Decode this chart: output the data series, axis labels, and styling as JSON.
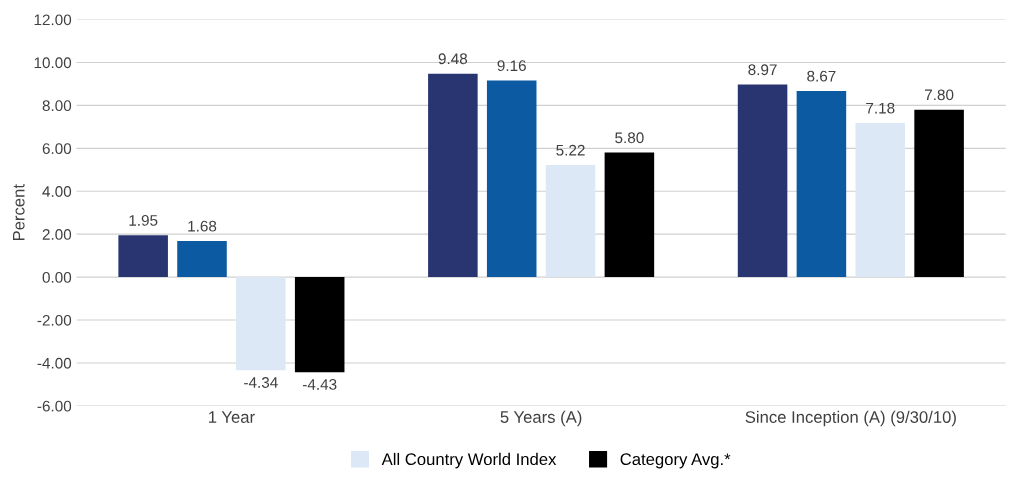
{
  "chart_data": {
    "type": "bar",
    "ylabel": "Percent",
    "categories": [
      "1 Year",
      "5 Years (A)",
      "Since Inception (A) (9/30/10)"
    ],
    "series": [
      {
        "color": "#283570",
        "values": [
          1.95,
          9.48,
          8.97
        ],
        "value_labels": [
          "1.95",
          "9.48",
          "8.97"
        ]
      },
      {
        "color": "#0b5aa2",
        "values": [
          1.68,
          9.16,
          8.67
        ],
        "value_labels": [
          "1.68",
          "9.16",
          "8.67"
        ]
      },
      {
        "name": "All Country World Index",
        "color": "#dce8f6",
        "values": [
          -4.34,
          5.22,
          7.18
        ],
        "value_labels": [
          "-4.34",
          "5.22",
          "7.18"
        ]
      },
      {
        "name": "Category Avg.*",
        "color": "#000000",
        "values": [
          -4.43,
          5.8,
          7.8
        ],
        "value_labels": [
          "-4.43",
          "5.80",
          "7.80"
        ]
      }
    ],
    "ylim": [
      -6,
      12
    ],
    "yticks": [
      {
        "value": -6,
        "label": "-6.00"
      },
      {
        "value": -4,
        "label": "-4.00"
      },
      {
        "value": -2,
        "label": "-2.00"
      },
      {
        "value": 0,
        "label": "0.00"
      },
      {
        "value": 2,
        "label": "2.00"
      },
      {
        "value": 4,
        "label": "4.00"
      },
      {
        "value": 6,
        "label": "6.00"
      },
      {
        "value": 8,
        "label": "8.00"
      },
      {
        "value": 10,
        "label": "10.00"
      },
      {
        "value": 12,
        "label": "12.00"
      }
    ],
    "grid": "y",
    "legend": "bottom"
  }
}
